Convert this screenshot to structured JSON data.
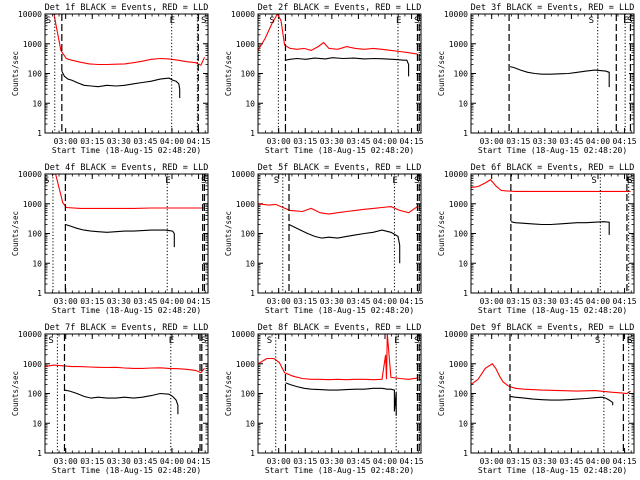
{
  "figure": {
    "xlabel": "Start Time (18-Aug-15 02:48:20)",
    "ylabel": "Counts/sec",
    "x_ticks": [
      "03:00",
      "03:15",
      "03:30",
      "03:45",
      "04:00",
      "04:15"
    ],
    "y_ticks": [
      "1",
      "10",
      "100",
      "1000",
      "10000"
    ],
    "markers": {
      "start": "S",
      "end": "E"
    },
    "colors": {
      "events": "#000000",
      "lld": "#ff0000",
      "axes": "#000000"
    }
  },
  "chart_data": [
    {
      "type": "line",
      "title": "Det 1f BLACK = Events, RED = LLD",
      "x_unit": "minutes since 02:48:20",
      "xlim": [
        0,
        92
      ],
      "ylim": [
        1,
        10000
      ],
      "yscale": "log",
      "vlines": {
        "dotted": [
          5.5,
          71.5,
          86.0
        ],
        "dashed": [
          9.5,
          86.5
        ]
      },
      "series": [
        {
          "name": "Events",
          "color": "#000000",
          "x": [
            9.5,
            11,
            13,
            15,
            18,
            22,
            26,
            30,
            35,
            40,
            45,
            50,
            55,
            60,
            65,
            70,
            72,
            74,
            75.5,
            76,
            76
          ],
          "y": [
            120,
            80,
            65,
            60,
            50,
            40,
            38,
            36,
            40,
            38,
            40,
            45,
            50,
            55,
            65,
            70,
            60,
            55,
            45,
            30,
            15
          ]
        },
        {
          "name": "LLD",
          "color": "#ff0000",
          "x": [
            0,
            5,
            9,
            12,
            15,
            20,
            25,
            30,
            35,
            40,
            45,
            50,
            55,
            60,
            65,
            70,
            75,
            80,
            85,
            88,
            90
          ],
          "y": [
            10000,
            10000,
            600,
            320,
            280,
            240,
            210,
            200,
            200,
            205,
            210,
            230,
            260,
            300,
            320,
            310,
            280,
            250,
            230,
            190,
            350
          ]
        }
      ]
    },
    {
      "type": "line",
      "title": "Det 2f BLACK = Events, RED = LLD",
      "x_unit": "minutes since 02:48:20",
      "xlim": [
        0,
        92
      ],
      "ylim": [
        1,
        10000
      ],
      "yscale": "log",
      "vlines": {
        "dotted": [
          11.5,
          79.0
        ],
        "dashed": [
          15.5,
          90.0,
          91.0
        ]
      },
      "series": [
        {
          "name": "Events",
          "color": "#000000",
          "x": [
            15.5,
            18,
            22,
            27,
            32,
            38,
            42,
            48,
            54,
            60,
            66,
            72,
            76,
            79,
            82,
            84,
            85,
            85
          ],
          "y": [
            280,
            300,
            320,
            300,
            330,
            310,
            340,
            320,
            330,
            310,
            320,
            310,
            300,
            290,
            280,
            280,
            200,
            80
          ]
        },
        {
          "name": "LLD",
          "color": "#ff0000",
          "x": [
            0,
            4,
            8,
            11,
            13,
            15,
            18,
            22,
            26,
            30,
            34,
            37,
            40,
            45,
            50,
            55,
            60,
            65,
            70,
            75,
            80,
            85,
            90
          ],
          "y": [
            600,
            1500,
            5000,
            10000,
            6000,
            900,
            700,
            650,
            700,
            600,
            800,
            1100,
            700,
            650,
            800,
            700,
            650,
            700,
            650,
            600,
            550,
            500,
            450
          ]
        }
      ]
    },
    {
      "type": "line",
      "title": "Det 3f BLACK = Events, RED = LLD",
      "x_unit": "minutes since 02:48:20",
      "xlim": [
        0,
        92
      ],
      "ylim": [
        1,
        10000
      ],
      "yscale": "log",
      "vlines": {
        "dotted": [
          71.5,
          87.0
        ],
        "dashed": [
          21.5,
          82.0,
          90.0
        ]
      },
      "series": [
        {
          "name": "Events",
          "color": "#000000",
          "x": [
            22,
            24,
            28,
            32,
            36,
            40,
            45,
            50,
            55,
            60,
            65,
            70,
            73,
            76,
            78,
            78
          ],
          "y": [
            170,
            160,
            130,
            110,
            100,
            95,
            95,
            98,
            100,
            110,
            120,
            130,
            125,
            120,
            110,
            35
          ]
        }
      ]
    },
    {
      "type": "line",
      "title": "Det 4f BLACK = Events, RED = LLD",
      "x_unit": "minutes since 02:48:20",
      "xlim": [
        0,
        92
      ],
      "ylim": [
        1,
        10000
      ],
      "yscale": "log",
      "vlines": {
        "dotted": [
          4.5,
          69.0
        ],
        "dashed": [
          11.5,
          89.0,
          90.0
        ]
      },
      "series": [
        {
          "name": "Events",
          "color": "#000000",
          "x": [
            11.5,
            14,
            18,
            22,
            26,
            30,
            35,
            40,
            45,
            50,
            55,
            60,
            65,
            68,
            70,
            72,
            73,
            73
          ],
          "y": [
            200,
            180,
            150,
            130,
            120,
            115,
            110,
            115,
            120,
            120,
            125,
            130,
            130,
            130,
            125,
            120,
            100,
            35
          ]
        },
        {
          "name": "LLD",
          "color": "#ff0000",
          "x": [
            0,
            6,
            10,
            12,
            20,
            30,
            40,
            50,
            60,
            70,
            80,
            85,
            88,
            90
          ],
          "y": [
            10000,
            10000,
            1100,
            750,
            700,
            700,
            700,
            700,
            720,
            720,
            720,
            720,
            720,
            720
          ]
        }
      ]
    },
    {
      "type": "line",
      "title": "Det 5f BLACK = Events, RED = LLD",
      "x_unit": "minutes since 02:48:20",
      "xlim": [
        0,
        92
      ],
      "ylim": [
        1,
        10000
      ],
      "yscale": "log",
      "vlines": {
        "dotted": [
          14.0,
          77.0
        ],
        "dashed": [
          17.5,
          90.0,
          91.0
        ]
      },
      "series": [
        {
          "name": "Events",
          "color": "#000000",
          "x": [
            17.5,
            20,
            24,
            28,
            32,
            36,
            40,
            45,
            50,
            55,
            60,
            65,
            70,
            75,
            79,
            80,
            80
          ],
          "y": [
            200,
            170,
            130,
            100,
            80,
            70,
            75,
            70,
            80,
            90,
            100,
            110,
            130,
            110,
            80,
            40,
            10
          ]
        },
        {
          "name": "LLD",
          "color": "#ff0000",
          "x": [
            0,
            6,
            10,
            13,
            18,
            25,
            30,
            35,
            40,
            45,
            50,
            55,
            60,
            65,
            70,
            75,
            80,
            85,
            90
          ],
          "y": [
            1000,
            900,
            950,
            800,
            600,
            550,
            700,
            500,
            450,
            500,
            550,
            600,
            650,
            700,
            750,
            800,
            600,
            500,
            800
          ]
        }
      ]
    },
    {
      "type": "line",
      "title": "Det 6f BLACK = Events, RED = LLD",
      "x_unit": "minutes since 02:48:20",
      "xlim": [
        0,
        92
      ],
      "ylim": [
        1,
        10000
      ],
      "yscale": "log",
      "vlines": {
        "dotted": [
          73.0,
          89.0
        ],
        "dashed": [
          22.5,
          88.0
        ]
      },
      "series": [
        {
          "name": "Events",
          "color": "#000000",
          "x": [
            22.5,
            25,
            30,
            35,
            40,
            45,
            50,
            55,
            60,
            65,
            70,
            75,
            78,
            78
          ],
          "y": [
            250,
            230,
            220,
            210,
            200,
            200,
            210,
            220,
            230,
            230,
            240,
            250,
            240,
            90
          ]
        },
        {
          "name": "LLD",
          "color": "#ff0000",
          "x": [
            0,
            4,
            8,
            11,
            14,
            17,
            20,
            25,
            40,
            60,
            80,
            90
          ],
          "y": [
            3500,
            3800,
            5000,
            6500,
            4000,
            2800,
            2700,
            2600,
            2600,
            2600,
            2600,
            2600
          ]
        }
      ]
    },
    {
      "type": "line",
      "title": "Det 7f BLACK = Events, RED = LLD",
      "x_unit": "minutes since 02:48:20",
      "xlim": [
        0,
        92
      ],
      "ylim": [
        1,
        10000
      ],
      "yscale": "log",
      "vlines": {
        "dotted": [
          7.0,
          71.0
        ],
        "dashed": [
          11.0,
          87.5,
          88.5
        ]
      },
      "series": [
        {
          "name": "Events",
          "color": "#000000",
          "x": [
            11,
            14,
            18,
            22,
            26,
            30,
            35,
            40,
            45,
            50,
            55,
            60,
            65,
            70,
            72,
            74,
            75,
            75
          ],
          "y": [
            130,
            120,
            100,
            80,
            70,
            75,
            70,
            70,
            75,
            70,
            75,
            85,
            100,
            95,
            80,
            60,
            40,
            20
          ]
        },
        {
          "name": "LLD",
          "color": "#ff0000",
          "x": [
            0,
            5,
            10,
            15,
            20,
            25,
            30,
            35,
            40,
            45,
            50,
            55,
            60,
            65,
            70,
            75,
            80,
            85,
            88,
            90
          ],
          "y": [
            800,
            900,
            850,
            800,
            800,
            780,
            760,
            750,
            760,
            720,
            700,
            700,
            720,
            730,
            700,
            680,
            650,
            600,
            500,
            700
          ]
        }
      ]
    },
    {
      "type": "line",
      "title": "Det 8f BLACK = Events, RED = LLD",
      "x_unit": "minutes since 02:48:20",
      "xlim": [
        0,
        92
      ],
      "ylim": [
        1,
        10000
      ],
      "yscale": "log",
      "vlines": {
        "dotted": [
          10.0,
          78.0
        ],
        "dashed": [
          15.5,
          90.0,
          91.0
        ]
      },
      "series": [
        {
          "name": "Events",
          "color": "#000000",
          "x": [
            15.5,
            18,
            22,
            26,
            30,
            35,
            40,
            45,
            50,
            55,
            60,
            65,
            70,
            73,
            75,
            77,
            77,
            78,
            78
          ],
          "y": [
            230,
            200,
            170,
            150,
            140,
            135,
            130,
            130,
            135,
            140,
            140,
            150,
            150,
            140,
            140,
            130,
            25,
            110,
            18
          ]
        },
        {
          "name": "LLD",
          "color": "#ff0000",
          "x": [
            0,
            5,
            9,
            12,
            15,
            20,
            25,
            30,
            35,
            40,
            45,
            50,
            55,
            60,
            65,
            70,
            72,
            72.5,
            73,
            75,
            80,
            85,
            90
          ],
          "y": [
            1000,
            1500,
            1500,
            1100,
            500,
            380,
            320,
            300,
            300,
            290,
            300,
            290,
            300,
            300,
            290,
            300,
            2000,
            300,
            10000,
            350,
            320,
            300,
            330
          ]
        }
      ]
    },
    {
      "type": "line",
      "title": "Det 9f BLACK = Events, RED = LLD",
      "x_unit": "minutes since 02:48:20",
      "xlim": [
        0,
        92
      ],
      "ylim": [
        1,
        10000
      ],
      "yscale": "log",
      "vlines": {
        "dotted": [
          75.0,
          89.0
        ],
        "dashed": [
          22.0,
          86.0
        ]
      },
      "series": [
        {
          "name": "Events",
          "color": "#000000",
          "x": [
            22,
            25,
            30,
            35,
            40,
            45,
            50,
            55,
            60,
            65,
            70,
            74,
            76,
            78,
            80,
            80
          ],
          "y": [
            80,
            75,
            70,
            65,
            62,
            60,
            60,
            62,
            65,
            68,
            72,
            75,
            70,
            60,
            50,
            40
          ]
        },
        {
          "name": "LLD",
          "color": "#ff0000",
          "x": [
            0,
            4,
            8,
            12,
            14,
            16,
            18,
            21,
            25,
            30,
            40,
            50,
            60,
            70,
            80,
            85,
            88,
            90
          ],
          "y": [
            200,
            300,
            700,
            1000,
            700,
            400,
            250,
            180,
            150,
            140,
            130,
            125,
            120,
            125,
            110,
            105,
            100,
            120
          ]
        }
      ]
    }
  ]
}
